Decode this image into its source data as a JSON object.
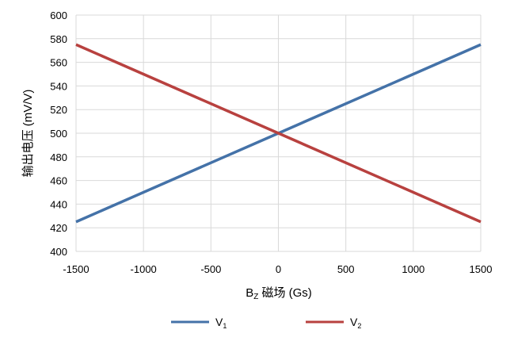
{
  "chart_data": {
    "type": "line",
    "xlabel_main": "B",
    "xlabel_sub": "Z",
    "xlabel_rest": " 磁场 (Gs)",
    "ylabel": "输出电压 (mV/V)",
    "xlim": [
      -1500,
      1500
    ],
    "ylim": [
      400,
      600
    ],
    "xticks": [
      "-1500",
      "-1000",
      "-500",
      "0",
      "500",
      "1000",
      "1500"
    ],
    "yticks": [
      "400",
      "420",
      "440",
      "460",
      "480",
      "500",
      "520",
      "540",
      "560",
      "580",
      "600"
    ],
    "grid": true,
    "legend_position": "bottom",
    "series": [
      {
        "name": "V",
        "sub": "1",
        "color": "#4472a8",
        "x": [
          -1500,
          1500
        ],
        "y": [
          425,
          575
        ]
      },
      {
        "name": "V",
        "sub": "2",
        "color": "#b8413f",
        "x": [
          -1500,
          1500
        ],
        "y": [
          575,
          425
        ]
      }
    ]
  }
}
